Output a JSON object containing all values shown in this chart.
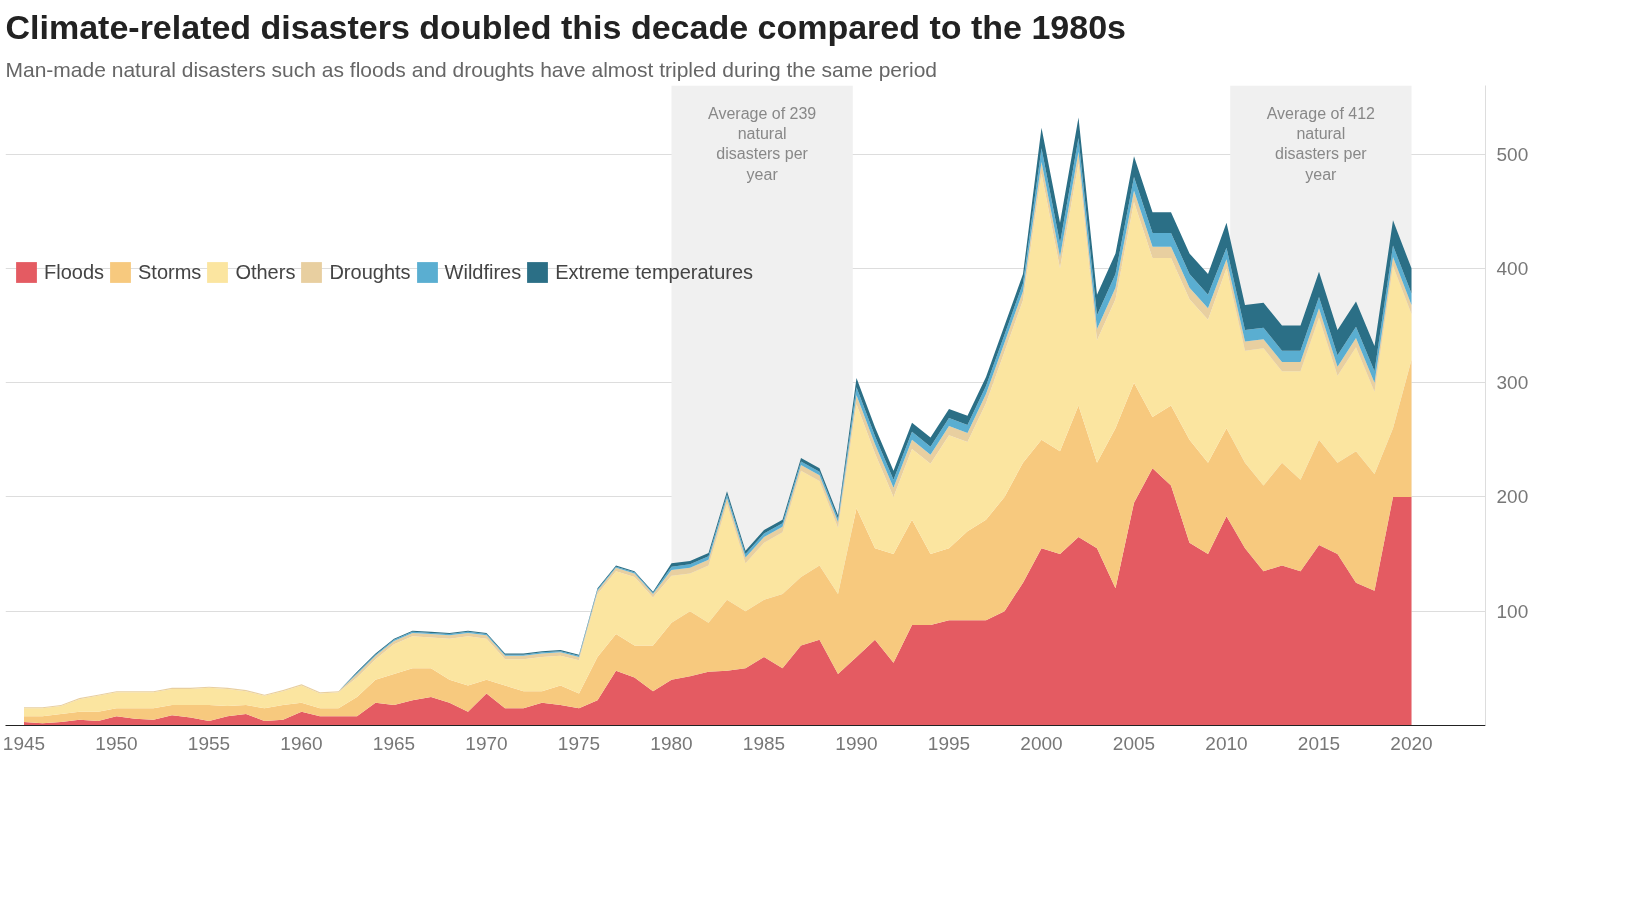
{
  "chart_data": {
    "type": "area",
    "stacked": true,
    "title": "Climate-related disasters doubled this decade compared to the 1980s",
    "subtitle": "Man-made natural disasters such as floods and droughts have almost tripled during the same period",
    "x": [
      1945,
      1946,
      1947,
      1948,
      1949,
      1950,
      1951,
      1952,
      1953,
      1954,
      1955,
      1956,
      1957,
      1958,
      1959,
      1960,
      1961,
      1962,
      1963,
      1964,
      1965,
      1966,
      1967,
      1968,
      1969,
      1970,
      1971,
      1972,
      1973,
      1974,
      1975,
      1976,
      1977,
      1978,
      1979,
      1980,
      1981,
      1982,
      1983,
      1984,
      1985,
      1986,
      1987,
      1988,
      1989,
      1990,
      1991,
      1992,
      1993,
      1994,
      1995,
      1996,
      1997,
      1998,
      1999,
      2000,
      2001,
      2002,
      2003,
      2004,
      2005,
      2006,
      2007,
      2008,
      2009,
      2010,
      2011,
      2012,
      2013,
      2014,
      2015,
      2016,
      2017,
      2018,
      2019,
      2020
    ],
    "series": [
      {
        "name": "Floods",
        "color": "#e45b62",
        "values": [
          3,
          2,
          3,
          5,
          4,
          8,
          6,
          5,
          9,
          7,
          4,
          8,
          10,
          4,
          5,
          12,
          8,
          8,
          8,
          20,
          18,
          22,
          25,
          20,
          12,
          28,
          15,
          15,
          20,
          18,
          15,
          22,
          48,
          42,
          30,
          40,
          43,
          47,
          48,
          50,
          60,
          50,
          70,
          75,
          45,
          60,
          75,
          55,
          88,
          88,
          92,
          92,
          92,
          100,
          125,
          155,
          150,
          165,
          155,
          120,
          195,
          225,
          210,
          160,
          150,
          183,
          155,
          135,
          140,
          135,
          158,
          150,
          125,
          118,
          200,
          200
        ]
      },
      {
        "name": "Storms",
        "color": "#f7c97e",
        "values": [
          5,
          6,
          7,
          7,
          8,
          7,
          9,
          10,
          9,
          11,
          14,
          9,
          8,
          11,
          13,
          8,
          7,
          7,
          17,
          20,
          27,
          28,
          25,
          20,
          23,
          12,
          20,
          15,
          10,
          17,
          13,
          38,
          32,
          28,
          40,
          50,
          57,
          43,
          62,
          50,
          50,
          65,
          60,
          65,
          70,
          130,
          80,
          95,
          92,
          62,
          63,
          78,
          88,
          100,
          105,
          95,
          90,
          115,
          75,
          140,
          105,
          45,
          70,
          90,
          80,
          77,
          75,
          75,
          90,
          80,
          92,
          80,
          115,
          102,
          60,
          120
        ]
      },
      {
        "name": "Others",
        "color": "#fbe5a0",
        "values": [
          7,
          7,
          7,
          11,
          14,
          14,
          14,
          14,
          14,
          14,
          15,
          15,
          12,
          11,
          12,
          15,
          13,
          14,
          17,
          18,
          26,
          28,
          27,
          36,
          43,
          36,
          23,
          28,
          30,
          26,
          29,
          55,
          55,
          60,
          42,
          41,
          33,
          50,
          84,
          42,
          50,
          54,
          93,
          74,
          58,
          91,
          83,
          50,
          62,
          79,
          99,
          78,
          102,
          127,
          142,
          233,
          160,
          212,
          107,
          113,
          158,
          139,
          129,
          123,
          125,
          140,
          98,
          120,
          80,
          95,
          107,
          76,
          91,
          72,
          142,
          40
        ]
      },
      {
        "name": "Droughts",
        "color": "#e8cfa0",
        "values": [
          1,
          1,
          1,
          1,
          1,
          1,
          1,
          1,
          1,
          1,
          1,
          1,
          1,
          1,
          1,
          1,
          1,
          1,
          3,
          3,
          3,
          3,
          3,
          3,
          3,
          3,
          3,
          3,
          3,
          3,
          3,
          3,
          3,
          3,
          3,
          5,
          5,
          5,
          5,
          5,
          5,
          5,
          5,
          5,
          5,
          8,
          8,
          8,
          8,
          8,
          8,
          8,
          8,
          8,
          8,
          10,
          10,
          10,
          10,
          10,
          10,
          10,
          10,
          10,
          10,
          8,
          8,
          8,
          8,
          8,
          8,
          8,
          8,
          8,
          8,
          8
        ]
      },
      {
        "name": "Wildfires",
        "color": "#5aaed1",
        "values": [
          0,
          0,
          0,
          0,
          0,
          0,
          0,
          0,
          0,
          0,
          0,
          0,
          0,
          0,
          0,
          0,
          0,
          0,
          1,
          1,
          1,
          1,
          1,
          1,
          1,
          1,
          1,
          1,
          1,
          1,
          1,
          1,
          1,
          1,
          1,
          3,
          3,
          3,
          3,
          3,
          3,
          3,
          3,
          3,
          3,
          7,
          7,
          7,
          7,
          7,
          7,
          7,
          7,
          7,
          7,
          12,
          12,
          12,
          12,
          12,
          12,
          12,
          12,
          12,
          12,
          10,
          10,
          10,
          10,
          10,
          10,
          10,
          10,
          10,
          10,
          10
        ]
      },
      {
        "name": "Extreme temperatures",
        "color": "#2b6f86",
        "values": [
          0,
          0,
          0,
          0,
          0,
          0,
          0,
          0,
          0,
          0,
          0,
          0,
          0,
          0,
          0,
          0,
          0,
          0,
          1,
          1,
          1,
          1,
          1,
          1,
          1,
          1,
          1,
          1,
          1,
          1,
          1,
          1,
          1,
          1,
          1,
          3,
          3,
          3,
          3,
          3,
          3,
          3,
          3,
          3,
          3,
          8,
          8,
          8,
          8,
          8,
          8,
          8,
          8,
          8,
          8,
          18,
          18,
          18,
          18,
          18,
          18,
          18,
          18,
          18,
          18,
          22,
          22,
          22,
          22,
          22,
          22,
          22,
          22,
          22,
          22,
          22
        ]
      }
    ],
    "xlim": [
      1944,
      2024
    ],
    "ylim": [
      0,
      560
    ],
    "xticks": [
      1945,
      1950,
      1955,
      1960,
      1965,
      1970,
      1975,
      1980,
      1985,
      1990,
      1995,
      2000,
      2005,
      2010,
      2015,
      2020
    ],
    "yticks": [
      100,
      200,
      300,
      400,
      500
    ],
    "grid": "y",
    "legend": "top left",
    "bands": [
      {
        "axis": "x",
        "from": 1980,
        "to": 1989.8,
        "label": "Average of 239 natural disasters per year",
        "color": "#f0f0f0"
      },
      {
        "axis": "x",
        "from": 2010.2,
        "to": 2020,
        "label": "Average of 412 natural disasters per year",
        "color": "#f0f0f0"
      }
    ]
  }
}
